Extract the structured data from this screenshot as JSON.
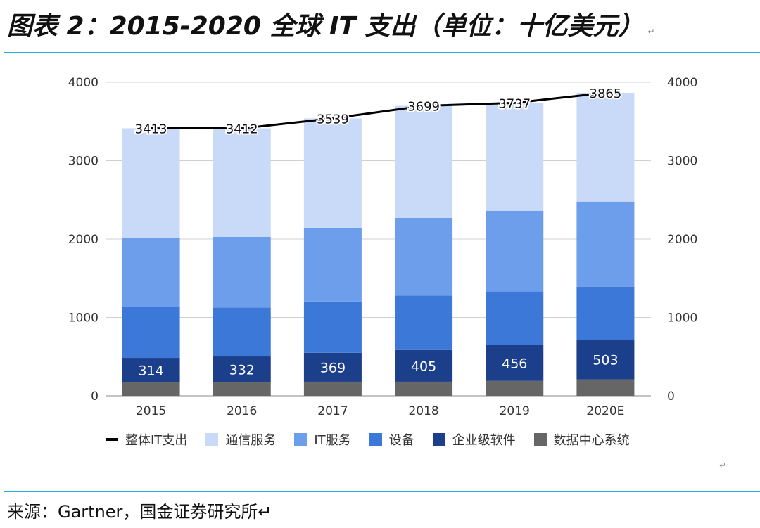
{
  "header": {
    "title": "图表 2：2015-2020 全球 IT 支出（单位：十亿美元）",
    "title_mark": "↵"
  },
  "footer": {
    "source": "来源：Gartner，国金证券研究所↵",
    "para_mark": "↵"
  },
  "chart_data": {
    "type": "bar",
    "stacked": true,
    "categories": [
      "2015",
      "2016",
      "2017",
      "2018",
      "2019",
      "2020E"
    ],
    "series": [
      {
        "name": "数据中心系统",
        "color": "#666666",
        "values": [
          170,
          170,
          180,
          180,
          190,
          210
        ]
      },
      {
        "name": "企业级软件",
        "color": "#1b3f8b",
        "values": [
          314,
          332,
          369,
          405,
          456,
          503
        ]
      },
      {
        "name": "设备",
        "color": "#3c78d8",
        "values": [
          655,
          625,
          655,
          695,
          685,
          680
        ]
      },
      {
        "name": "IT服务",
        "color": "#6d9eeb",
        "values": [
          875,
          900,
          940,
          990,
          1030,
          1085
        ]
      },
      {
        "name": "通信服务",
        "color": "#c9daf8",
        "values": [
          1399,
          1385,
          1395,
          1429,
          1376,
          1387
        ]
      }
    ],
    "line_series": {
      "name": "整体IT支出",
      "color": "#000000",
      "values": [
        3413,
        3412,
        3539,
        3699,
        3737,
        3865
      ]
    },
    "labeled_series": "企业级软件",
    "ylim": [
      0,
      4000
    ],
    "yticks": [
      0,
      1000,
      2000,
      3000,
      4000
    ],
    "y2ticks": [
      0,
      1000,
      2000,
      3000,
      4000
    ],
    "grid": true,
    "legend_position": "bottom"
  }
}
